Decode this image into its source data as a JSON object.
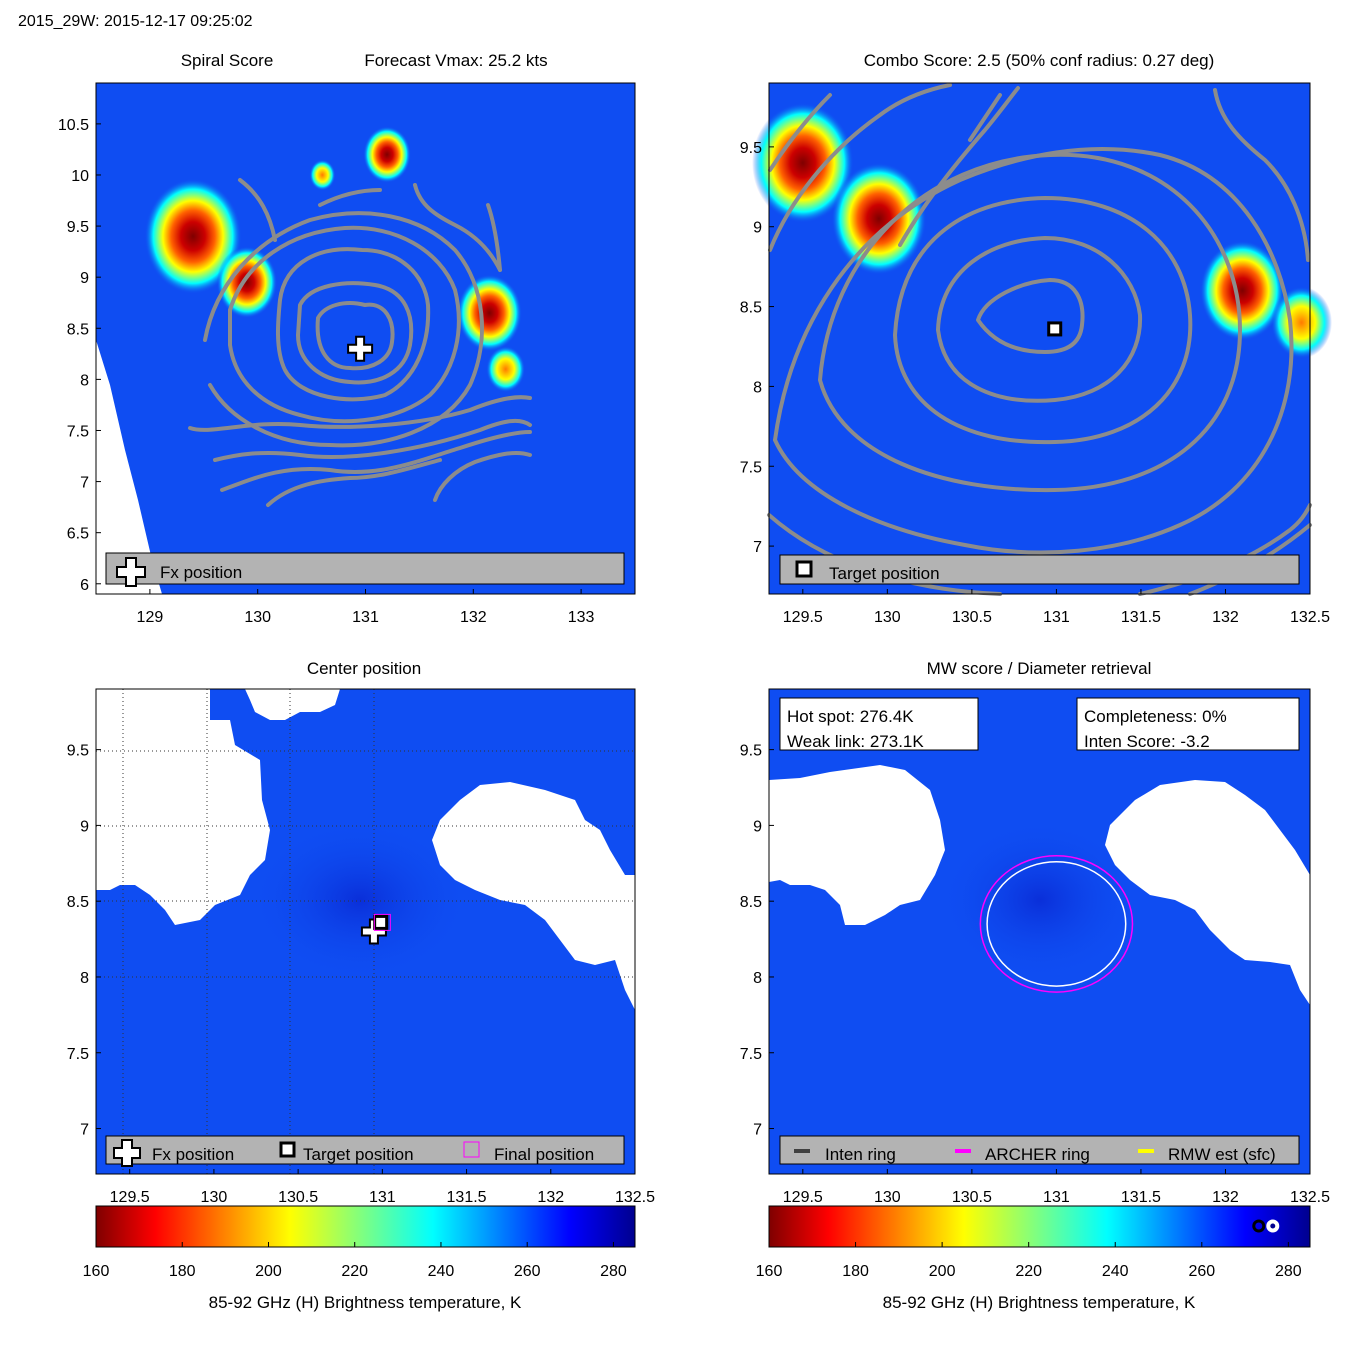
{
  "header": {
    "title": "2015_29W: 2015-12-17 09:25:02"
  },
  "colors": {
    "background_blue": "#0f4df2",
    "deep_blue": "#0a2fd9",
    "contour_gray": "#8c8c8c",
    "legend_gray": "#b3b3b3",
    "archer_ring": "#ff00ff",
    "rmw_est": "#ffff00",
    "inten_ring": "#404040"
  },
  "chart_data": [
    {
      "id": "spiral",
      "type": "heatmap",
      "title": "Spiral Score",
      "subtitle": "Forecast Vmax: 25.2 kts",
      "xlim": [
        128.5,
        133.5
      ],
      "ylim": [
        5.9,
        10.9
      ],
      "xticks": [
        "129",
        "130",
        "131",
        "132",
        "133"
      ],
      "yticks": [
        "6",
        "6.5",
        "7",
        "7.5",
        "8",
        "8.5",
        "9",
        "9.5",
        "10",
        "10.5"
      ],
      "contours": true,
      "markers": [
        {
          "kind": "fx-plus",
          "x": 130.95,
          "y": 8.3
        }
      ],
      "features": [
        {
          "kind": "hot",
          "x": 129.4,
          "y": 9.4,
          "size": 0.45
        },
        {
          "kind": "hot",
          "x": 129.9,
          "y": 8.95,
          "size": 0.28
        },
        {
          "kind": "hot",
          "x": 131.2,
          "y": 10.2,
          "size": 0.22
        },
        {
          "kind": "hot",
          "x": 132.15,
          "y": 8.65,
          "size": 0.3
        },
        {
          "kind": "warm",
          "x": 132.3,
          "y": 8.1,
          "size": 0.18
        },
        {
          "kind": "warm",
          "x": 130.6,
          "y": 10.0,
          "size": 0.12
        }
      ],
      "legend": [
        {
          "icon": "fx-plus",
          "label": "Fx position"
        }
      ]
    },
    {
      "id": "combo",
      "type": "heatmap",
      "title": "Combo Score: 2.5  (50% conf radius: 0.27 deg)",
      "xlim": [
        129.3,
        132.5
      ],
      "ylim": [
        6.7,
        9.9
      ],
      "xticks": [
        "129.5",
        "130",
        "130.5",
        "131",
        "131.5",
        "132",
        "132.5"
      ],
      "yticks": [
        "7",
        "7.5",
        "8",
        "8.5",
        "9",
        "9.5"
      ],
      "contours": true,
      "markers": [
        {
          "kind": "target-square",
          "x": 130.99,
          "y": 8.36
        }
      ],
      "features": [
        {
          "kind": "hot",
          "x": 129.5,
          "y": 9.4,
          "size": 0.3
        },
        {
          "kind": "hot",
          "x": 129.95,
          "y": 9.05,
          "size": 0.28
        },
        {
          "kind": "hot",
          "x": 132.1,
          "y": 8.6,
          "size": 0.25
        },
        {
          "kind": "warm",
          "x": 132.45,
          "y": 8.4,
          "size": 0.18
        }
      ],
      "legend": [
        {
          "icon": "target-square",
          "label": "Target position"
        }
      ]
    },
    {
      "id": "center",
      "type": "heatmap",
      "title": "Center position",
      "xlim": [
        129.3,
        132.5
      ],
      "ylim": [
        6.7,
        9.9
      ],
      "xticks": [
        "129.5",
        "130",
        "130.5",
        "131",
        "131.5",
        "132",
        "132.5"
      ],
      "yticks": [
        "7",
        "7.5",
        "8",
        "8.5",
        "9",
        "9.5"
      ],
      "grid": true,
      "markers": [
        {
          "kind": "fx-plus",
          "x": 130.95,
          "y": 8.3
        },
        {
          "kind": "target-square",
          "x": 130.99,
          "y": 8.36
        },
        {
          "kind": "final-square",
          "x": 131.0,
          "y": 8.36
        }
      ],
      "legend": [
        {
          "icon": "fx-plus",
          "label": "Fx position"
        },
        {
          "icon": "target-square",
          "label": "Target position"
        },
        {
          "icon": "final-square",
          "label": "Final position"
        }
      ],
      "colorbar": {
        "range": [
          160,
          285
        ],
        "ticks": [
          "160",
          "180",
          "200",
          "220",
          "240",
          "260",
          "280"
        ],
        "label": "85-92 GHz (H) Brightness temperature, K"
      }
    },
    {
      "id": "mw",
      "type": "heatmap",
      "title": "MW score / Diameter retrieval",
      "xlim": [
        129.3,
        132.5
      ],
      "ylim": [
        6.7,
        9.9
      ],
      "xticks": [
        "129.5",
        "130",
        "130.5",
        "131",
        "131.5",
        "132",
        "132.5"
      ],
      "yticks": [
        "7",
        "7.5",
        "8",
        "8.5",
        "9",
        "9.5"
      ],
      "rings": [
        {
          "kind": "archer",
          "cx": 131.0,
          "cy": 8.35,
          "rx": 0.45,
          "ry": 0.45
        },
        {
          "kind": "inten",
          "cx": 131.0,
          "cy": 8.35,
          "rx": 0.41,
          "ry": 0.41
        }
      ],
      "info_left": [
        "Hot spot: 276.4K",
        "Weak link: 273.1K"
      ],
      "info_right": [
        "Completeness: 0%",
        "Inten Score: -3.2"
      ],
      "legend": [
        {
          "icon": "inten",
          "label": "Inten ring"
        },
        {
          "icon": "archer",
          "label": "ARCHER ring"
        },
        {
          "icon": "rmw",
          "label": "RMW est (sfc)"
        }
      ],
      "colorbar": {
        "range": [
          160,
          285
        ],
        "ticks": [
          "160",
          "180",
          "200",
          "220",
          "240",
          "260",
          "280"
        ],
        "label": "85-92 GHz (H) Brightness temperature, K",
        "marker": {
          "value": 276.4
        }
      }
    }
  ]
}
